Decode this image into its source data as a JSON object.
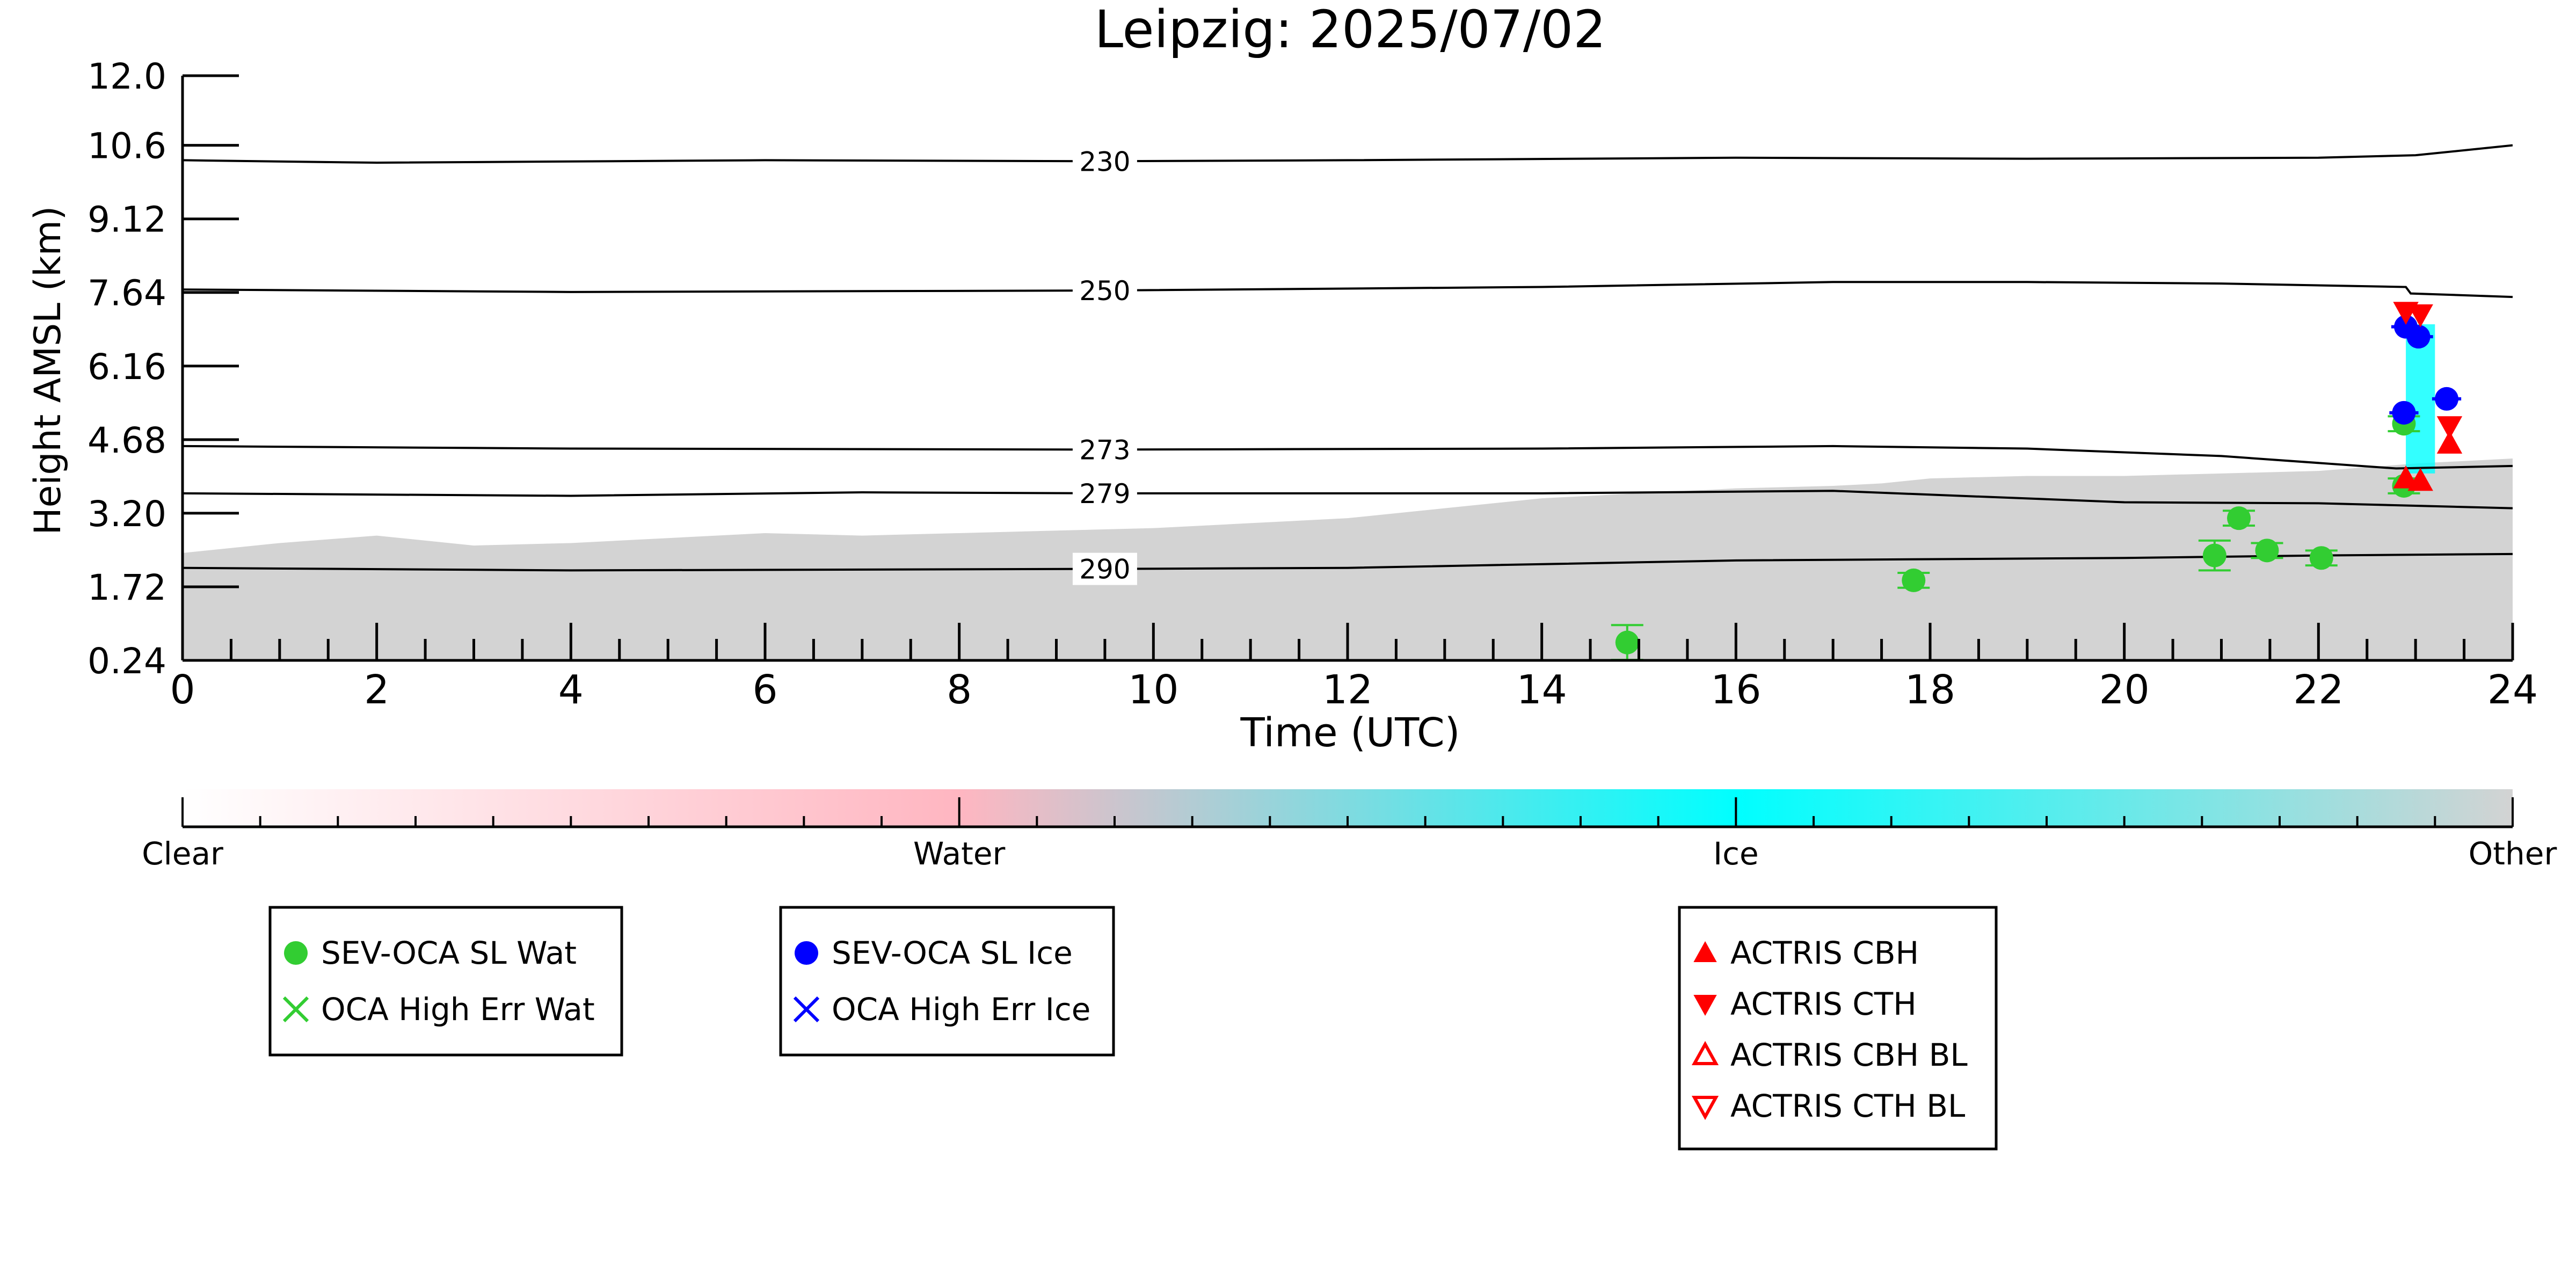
{
  "chart_data": {
    "type": "scatter",
    "title": "Leipzig: 2025/07/02",
    "xlabel": "Time (UTC)",
    "ylabel": "Height AMSL (km)",
    "xlim": [
      0,
      24
    ],
    "ylim": [
      0.24,
      12.0
    ],
    "x_ticks": [
      0,
      2,
      4,
      6,
      8,
      10,
      12,
      14,
      16,
      18,
      20,
      22,
      24
    ],
    "x_tick_labels": [
      "0",
      "2",
      "4",
      "6",
      "8",
      "10",
      "12",
      "14",
      "16",
      "18",
      "20",
      "22",
      "24"
    ],
    "y_ticks": [
      0.24,
      1.72,
      3.2,
      4.68,
      6.16,
      7.64,
      9.12,
      10.6,
      12.0
    ],
    "y_tick_labels": [
      "0.24",
      "1.72",
      "3.20",
      "4.68",
      "6.16",
      "7.64",
      "9.12",
      "10.6",
      "12.0"
    ],
    "grid": false,
    "contours": [
      {
        "label": "230",
        "x": [
          0,
          2,
          6,
          9.5,
          12,
          16,
          19,
          22,
          23,
          24
        ],
        "y": [
          10.3,
          10.25,
          10.3,
          10.28,
          10.3,
          10.35,
          10.33,
          10.35,
          10.4,
          10.6
        ]
      },
      {
        "label": "250",
        "x": [
          0,
          4,
          9.5,
          14,
          17,
          19,
          21,
          22.9,
          22.95,
          24
        ],
        "y": [
          7.7,
          7.65,
          7.68,
          7.75,
          7.85,
          7.85,
          7.82,
          7.75,
          7.62,
          7.55
        ]
      },
      {
        "label": "273",
        "x": [
          0,
          4,
          9.5,
          14,
          17,
          19,
          21,
          22.8,
          24
        ],
        "y": [
          4.55,
          4.5,
          4.48,
          4.5,
          4.55,
          4.5,
          4.35,
          4.1,
          4.15
        ]
      },
      {
        "label": "279",
        "x": [
          0,
          4,
          7,
          9.5,
          14,
          17,
          20,
          22,
          24
        ],
        "y": [
          3.6,
          3.55,
          3.62,
          3.6,
          3.6,
          3.65,
          3.42,
          3.4,
          3.3
        ]
      },
      {
        "label": "290",
        "x": [
          0,
          4,
          9.5,
          12,
          16,
          20,
          22,
          24
        ],
        "y": [
          2.1,
          2.05,
          2.08,
          2.1,
          2.25,
          2.3,
          2.35,
          2.38
        ]
      }
    ],
    "background_other": {
      "x": [
        0,
        1,
        2,
        3,
        4,
        5,
        6,
        7,
        8,
        9,
        10,
        11,
        12,
        13,
        14,
        15,
        16,
        17,
        17.5,
        18,
        19,
        20,
        21,
        22,
        23,
        24
      ],
      "top": [
        2.4,
        2.6,
        2.75,
        2.55,
        2.6,
        2.7,
        2.8,
        2.75,
        2.8,
        2.85,
        2.9,
        3.0,
        3.1,
        3.3,
        3.5,
        3.6,
        3.7,
        3.75,
        3.8,
        3.9,
        3.95,
        3.95,
        4.0,
        4.05,
        4.2,
        4.3
      ]
    },
    "ice_patch": {
      "x": [
        22.9,
        23.2
      ],
      "y": [
        4.0,
        7.0
      ]
    },
    "series": [
      {
        "name": "SEV-OCA SL Wat",
        "color": "#32cd32",
        "marker": "circle",
        "points": [
          {
            "x": 14.88,
            "y": 0.6,
            "err": 0.35
          },
          {
            "x": 17.83,
            "y": 1.85,
            "err": 0.15
          },
          {
            "x": 20.93,
            "y": 2.35,
            "err": 0.3
          },
          {
            "x": 21.18,
            "y": 3.1,
            "err": 0.15
          },
          {
            "x": 21.47,
            "y": 2.45,
            "err": 0.15
          },
          {
            "x": 22.03,
            "y": 2.3,
            "err": 0.15
          },
          {
            "x": 22.88,
            "y": 3.75,
            "err": 0.15
          },
          {
            "x": 22.88,
            "y": 5.0,
            "err": 0.15
          }
        ]
      },
      {
        "name": "OCA High Err Wat",
        "color": "#32cd32",
        "marker": "x",
        "points": []
      },
      {
        "name": "SEV-OCA SL Ice",
        "color": "#0000ff",
        "marker": "circle",
        "points": [
          {
            "x": 22.88,
            "y": 5.22,
            "xerr": 0.15
          },
          {
            "x": 22.9,
            "y": 6.95,
            "xerr": 0.15
          },
          {
            "x": 23.03,
            "y": 6.75,
            "xerr": 0.15
          },
          {
            "x": 23.32,
            "y": 5.5,
            "xerr": 0.15
          }
        ]
      },
      {
        "name": "OCA High Err Ice",
        "color": "#0000ff",
        "marker": "x",
        "points": []
      },
      {
        "name": "ACTRIS CBH",
        "color": "#ff0000",
        "marker": "triangle-up",
        "points": [
          {
            "x": 22.9,
            "y": 3.9
          },
          {
            "x": 23.05,
            "y": 3.85
          },
          {
            "x": 23.35,
            "y": 4.6
          }
        ]
      },
      {
        "name": "ACTRIS CTH",
        "color": "#ff0000",
        "marker": "triangle-down",
        "points": [
          {
            "x": 22.9,
            "y": 7.25
          },
          {
            "x": 23.05,
            "y": 7.2
          },
          {
            "x": 23.35,
            "y": 4.95
          }
        ]
      },
      {
        "name": "ACTRIS CBH BL",
        "color": "#ff0000",
        "marker": "triangle-up-open",
        "points": []
      },
      {
        "name": "ACTRIS CTH BL",
        "color": "#ff0000",
        "marker": "triangle-down-open",
        "points": []
      }
    ],
    "colorbar": {
      "labels": [
        "Clear",
        "Water",
        "Ice",
        "Other"
      ],
      "colors": [
        "#ffffff",
        "#ffb6c1",
        "#00ffff",
        "#d3d3d3"
      ]
    },
    "legends": [
      {
        "entries": [
          "SEV-OCA SL Wat",
          "OCA High Err Wat"
        ]
      },
      {
        "entries": [
          "SEV-OCA SL Ice",
          "OCA High Err Ice"
        ]
      },
      {
        "entries": [
          "ACTRIS CBH",
          "ACTRIS CTH",
          "ACTRIS CBH BL",
          "ACTRIS CTH BL"
        ]
      }
    ]
  }
}
